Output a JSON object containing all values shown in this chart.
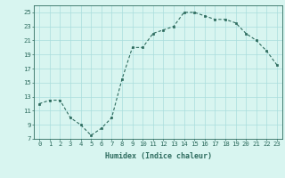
{
  "x": [
    0,
    1,
    2,
    3,
    4,
    5,
    6,
    7,
    8,
    9,
    10,
    11,
    12,
    13,
    14,
    15,
    16,
    17,
    18,
    19,
    20,
    21,
    22,
    23
  ],
  "y": [
    12.0,
    12.5,
    12.5,
    10.0,
    9.0,
    7.5,
    8.5,
    10.0,
    15.5,
    20.0,
    20.0,
    22.0,
    22.5,
    23.0,
    25.0,
    25.0,
    24.5,
    24.0,
    24.0,
    23.5,
    22.0,
    21.0,
    19.5,
    17.5
  ],
  "xlabel": "Humidex (Indice chaleur)",
  "ylim": [
    7,
    26
  ],
  "xlim": [
    -0.5,
    23.5
  ],
  "yticks": [
    7,
    9,
    11,
    13,
    15,
    17,
    19,
    21,
    23,
    25
  ],
  "xticks": [
    0,
    1,
    2,
    3,
    4,
    5,
    6,
    7,
    8,
    9,
    10,
    11,
    12,
    13,
    14,
    15,
    16,
    17,
    18,
    19,
    20,
    21,
    22,
    23
  ],
  "line_color": "#2d6b5e",
  "marker_color": "#2d6b5e",
  "bg_color": "#d8f5f0",
  "grid_color": "#aadddd",
  "xlabel_fontsize": 6.0,
  "tick_fontsize": 5.2
}
